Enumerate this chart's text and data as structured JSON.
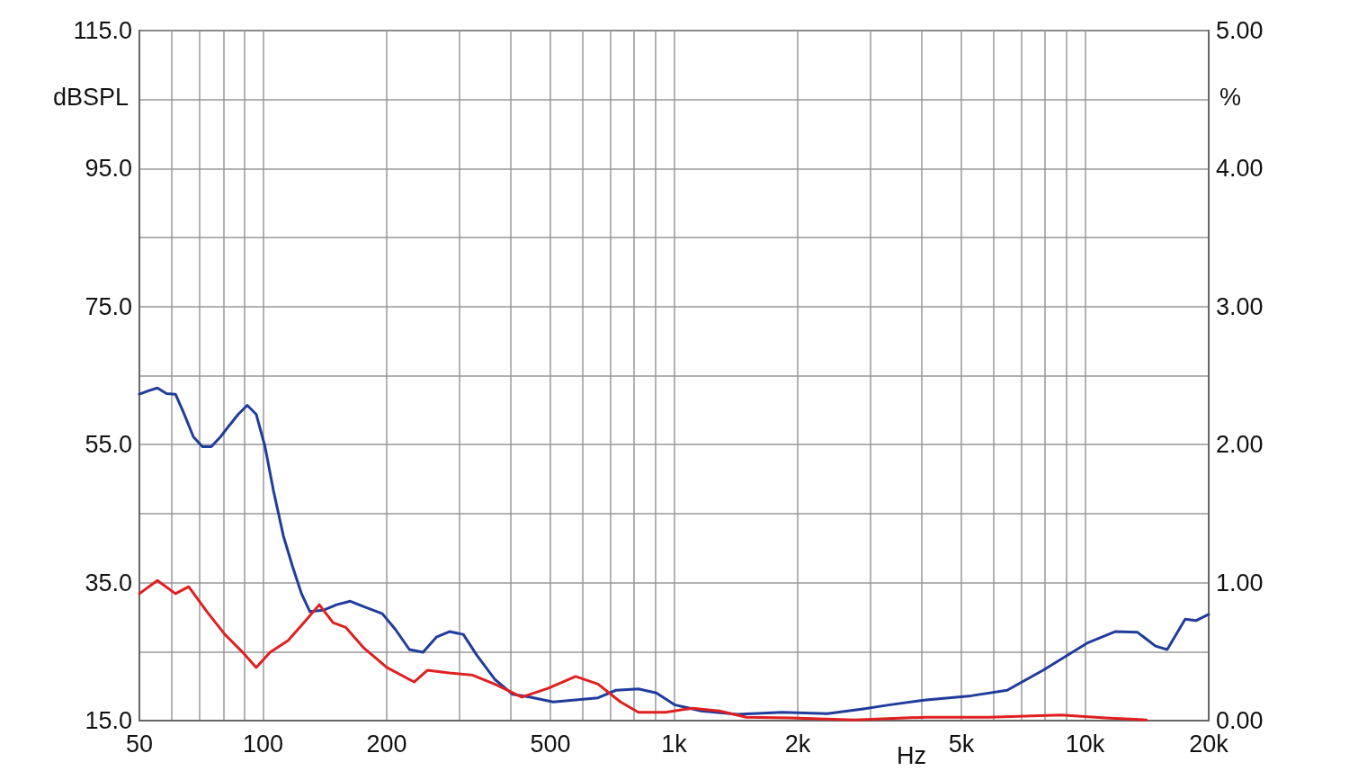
{
  "chart_data": {
    "type": "line",
    "xlabel": "Hz",
    "ylabel": "dBSPL",
    "y2label": "%",
    "log": "x",
    "grid": true,
    "marker": "none",
    "line_style": "solid",
    "xlim": [
      50,
      20000
    ],
    "xticks": [
      50,
      {
        "value": 60,
        "label": null
      },
      {
        "value": 70,
        "label": null
      },
      {
        "value": 80,
        "label": null
      },
      {
        "value": 90,
        "label": null
      },
      100,
      200,
      {
        "value": 300,
        "label": null
      },
      {
        "value": 400,
        "label": null
      },
      500,
      {
        "value": 600,
        "label": null
      },
      {
        "value": 700,
        "label": null
      },
      {
        "value": 800,
        "label": null
      },
      {
        "value": 900,
        "label": null
      },
      {
        "value": 1000,
        "label": "1k"
      },
      {
        "value": 2000,
        "label": "2k"
      },
      {
        "value": 3000,
        "label": null
      },
      {
        "value": 4000,
        "label": null
      },
      {
        "value": 5000,
        "label": "5k"
      },
      {
        "value": 6000,
        "label": null
      },
      {
        "value": 7000,
        "label": null
      },
      {
        "value": 8000,
        "label": null
      },
      {
        "value": 9000,
        "label": null
      },
      {
        "value": 10000,
        "label": "10k"
      },
      {
        "value": 20000,
        "label": "20k"
      }
    ],
    "ylim": [
      15,
      115
    ],
    "yticks": [
      {
        "value": 15,
        "label": "15.0"
      },
      {
        "value": 25,
        "label": null
      },
      {
        "value": 35,
        "label": "35.0"
      },
      {
        "value": 45,
        "label": null
      },
      {
        "value": 55,
        "label": "55.0"
      },
      {
        "value": 65,
        "label": null
      },
      {
        "value": 75,
        "label": "75.0"
      },
      {
        "value": 85,
        "label": null
      },
      {
        "value": 95,
        "label": "95.0"
      },
      {
        "value": 105,
        "label": null
      },
      {
        "value": 115,
        "label": "115.0"
      }
    ],
    "y2lim": [
      0,
      5
    ],
    "y2ticks": [
      {
        "value": 0,
        "label": "0.00"
      },
      {
        "value": 1,
        "label": "1.00"
      },
      {
        "value": 2,
        "label": "2.00"
      },
      {
        "value": 3,
        "label": "3.00"
      },
      {
        "value": 4,
        "label": "4.00"
      },
      {
        "value": 5,
        "label": "5.00"
      }
    ],
    "series": [
      {
        "color": "#203c9c",
        "x": [
          50,
          52.6,
          55.3,
          58.2,
          61.2,
          64.3,
          67.7,
          71.2,
          74.8,
          78.7,
          82.8,
          87,
          91.5,
          96.2,
          101,
          106,
          112,
          118,
          124,
          130,
          140,
          151,
          163,
          176,
          195,
          210,
          227,
          245,
          264,
          284,
          307,
          331,
          366,
          405,
          448,
          508,
          576,
          653,
          722,
          819,
          906,
          1002,
          1165,
          1426,
          1835,
          2360,
          2887,
          3357,
          4108,
          5283,
          6464,
          7907,
          10172,
          11833,
          13423,
          14845,
          15851,
          17528,
          18622,
          20000
        ],
        "values": [
          62.3,
          62.8,
          63.2,
          62.4,
          62.3,
          59.4,
          56.1,
          54.7,
          54.7,
          56.1,
          57.8,
          59.4,
          60.7,
          59.4,
          54.8,
          48.3,
          41.8,
          37.3,
          33.4,
          30.8,
          31.0,
          31.8,
          32.3,
          31.5,
          30.5,
          28.2,
          25.3,
          24.9,
          27.1,
          27.9,
          27.5,
          24.5,
          21.0,
          18.8,
          18.4,
          17.7,
          18.0,
          18.3,
          19.4,
          19.6,
          19.0,
          17.3,
          16.4,
          15.9,
          16.2,
          16.0,
          16.7,
          17.3,
          18.0,
          18.6,
          19.4,
          22.3,
          26.3,
          27.9,
          27.8,
          25.8,
          25.3,
          29.7,
          29.5,
          30.4
        ]
      },
      {
        "color": "#e02020",
        "x": [
          50,
          55.3,
          61.2,
          65.9,
          73,
          80.7,
          89.2,
          96.2,
          104,
          115,
          127,
          137,
          148,
          159,
          176,
          200,
          233,
          251,
          284,
          323,
          366,
          426,
          495,
          576,
          653,
          741,
          819,
          953,
          1108,
          1289,
          1499,
          1930,
          2745,
          4108,
          5843,
          8749,
          11250,
          14116
        ],
        "values": [
          33.4,
          35.3,
          33.4,
          34.4,
          30.8,
          27.5,
          24.9,
          22.7,
          24.9,
          26.6,
          29.5,
          31.8,
          29.2,
          28.5,
          25.5,
          22.7,
          20.6,
          22.3,
          21.9,
          21.6,
          20.3,
          18.4,
          19.7,
          21.4,
          20.3,
          17.7,
          16.2,
          16.2,
          16.8,
          16.4,
          15.5,
          15.4,
          15.1,
          15.5,
          15.5,
          15.8,
          15.4,
          15.1
        ]
      }
    ]
  }
}
